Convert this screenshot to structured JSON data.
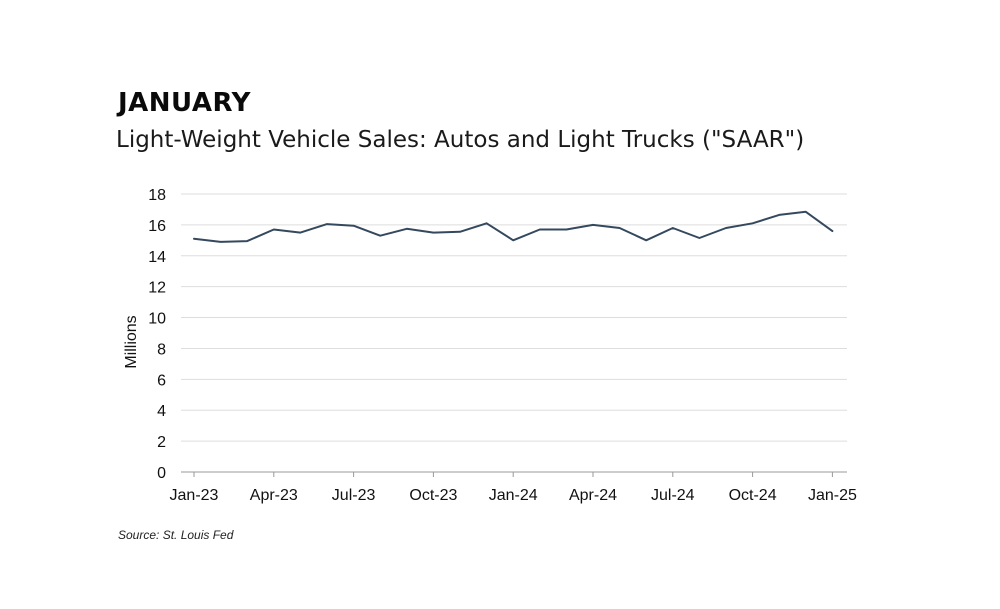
{
  "header": {
    "title": "JANUARY",
    "subtitle": "Light-Weight Vehicle Sales: Autos and Light Trucks (\"SAAR\")"
  },
  "footer": {
    "source": "Source: St. Louis Fed"
  },
  "colors": {
    "line": "#34495e",
    "grid": "#dddddd",
    "axis": "#999999"
  },
  "chart_data": {
    "type": "line",
    "title": "Light-Weight Vehicle Sales: Autos and Light Trucks (\"SAAR\")",
    "xlabel": "",
    "ylabel": "Millions",
    "ylim": [
      0,
      18
    ],
    "yticks": [
      0,
      2,
      4,
      6,
      8,
      10,
      12,
      14,
      16,
      18
    ],
    "grid": true,
    "x": [
      "2023-01",
      "2023-02",
      "2023-03",
      "2023-04",
      "2023-05",
      "2023-06",
      "2023-07",
      "2023-08",
      "2023-09",
      "2023-10",
      "2023-11",
      "2023-12",
      "2024-01",
      "2024-02",
      "2024-03",
      "2024-04",
      "2024-05",
      "2024-06",
      "2024-07",
      "2024-08",
      "2024-09",
      "2024-10",
      "2024-11",
      "2024-12",
      "2025-01"
    ],
    "xticks": [
      "Jan-23",
      "Apr-23",
      "Jul-23",
      "Oct-23",
      "Jan-24",
      "Apr-24",
      "Jul-24",
      "Oct-24",
      "Jan-25"
    ],
    "series": [
      {
        "values": [
          15.1,
          14.9,
          14.95,
          15.7,
          15.5,
          16.05,
          15.95,
          15.3,
          15.75,
          15.5,
          15.55,
          16.1,
          15.0,
          15.7,
          15.7,
          16.0,
          15.8,
          15.0,
          15.8,
          15.15,
          15.8,
          16.1,
          16.65,
          16.85,
          15.6
        ]
      }
    ]
  }
}
